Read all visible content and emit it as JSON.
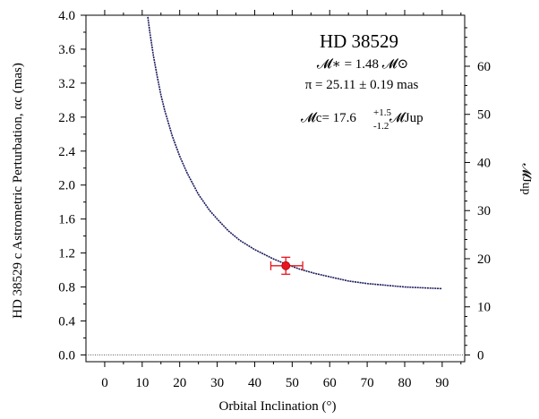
{
  "chart_data": {
    "type": "line",
    "title": "HD 38529",
    "annotations": {
      "mass_star": "𝓜∗ = 1.48 𝓜⊙",
      "parallax": "π = 25.11 ± 0.19 mas",
      "mass_c_prefix": "𝓜c= 17.6",
      "mass_c_plus": "+1.5",
      "mass_c_minus": "-1.2",
      "mass_c_suffix": "𝓜Jup"
    },
    "xlabel": "Orbital Inclination (°)",
    "ylabel": "HD 38529 c Astrometric Perturbation, αc (mas)",
    "y2label": "𝓜Jup",
    "xlim": [
      -5,
      96
    ],
    "ylim": [
      -0.08,
      4.0
    ],
    "y2lim": [
      -1.4,
      70.6
    ],
    "xticks": [
      "0",
      "10",
      "20",
      "30",
      "40",
      "50",
      "60",
      "70",
      "80",
      "90"
    ],
    "yticks": [
      "0.0",
      "0.4",
      "0.8",
      "1.2",
      "1.6",
      "2.0",
      "2.4",
      "2.8",
      "3.2",
      "3.6",
      "4.0"
    ],
    "y2ticks": [
      "0",
      "10",
      "20",
      "30",
      "40",
      "50",
      "60"
    ],
    "curve": {
      "x": [
        11.5,
        12,
        13,
        14,
        15,
        16,
        18,
        20,
        22,
        25,
        28,
        30,
        33,
        36,
        40,
        45,
        48.3,
        52,
        56,
        60,
        65,
        70,
        75,
        80,
        85,
        90
      ],
      "y": [
        3.98,
        3.81,
        3.52,
        3.28,
        3.06,
        2.88,
        2.58,
        2.34,
        2.14,
        1.89,
        1.7,
        1.6,
        1.46,
        1.35,
        1.24,
        1.13,
        1.07,
        1.01,
        0.96,
        0.92,
        0.87,
        0.84,
        0.82,
        0.8,
        0.79,
        0.78
      ]
    },
    "measurement": {
      "x": 48.3,
      "y": 1.05,
      "x_err": [
        4.0,
        4.5
      ],
      "y_err": [
        0.1,
        0.1
      ]
    },
    "zero_line_y": 0.0,
    "colors": {
      "curve": "#1a1a5e",
      "point": "#e8141c",
      "axis": "#000000"
    }
  }
}
